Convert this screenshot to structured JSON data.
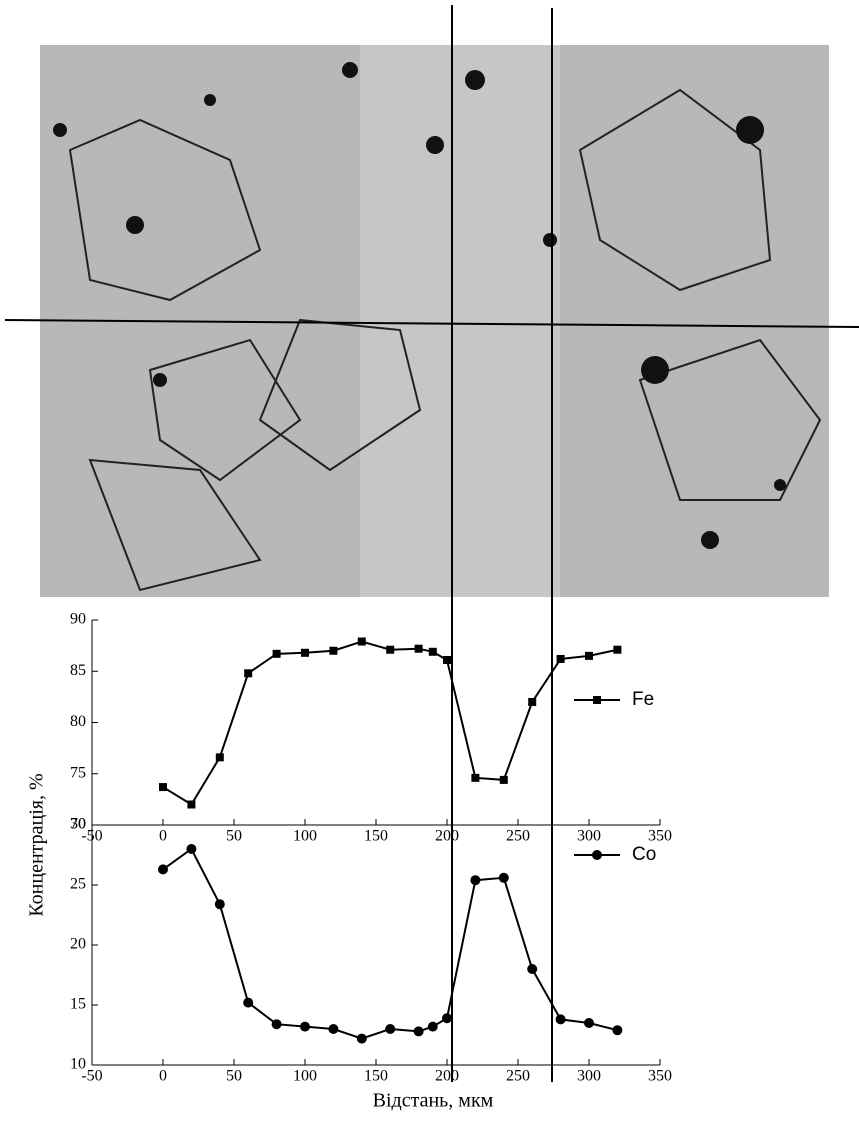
{
  "chart_data": [
    {
      "type": "line",
      "y_label": "Концентрація, %",
      "x": [
        0,
        20,
        40,
        60,
        80,
        100,
        120,
        140,
        160,
        180,
        190,
        200,
        220,
        240,
        260,
        280,
        300,
        320
      ],
      "series": [
        {
          "name": "Fe",
          "color": "#000000",
          "marker": "square",
          "values": [
            73.7,
            72,
            76.6,
            84.8,
            86.7,
            86.8,
            87,
            87.9,
            87.1,
            87.2,
            86.9,
            86.1,
            74.6,
            74.4,
            82,
            86.2,
            86.5,
            87.1
          ]
        }
      ],
      "xlim": [
        -50,
        350
      ],
      "xticks": [
        -50,
        0,
        50,
        100,
        150,
        200,
        250,
        300,
        350
      ],
      "ylim": [
        70,
        90
      ],
      "yticks": [
        70,
        75,
        80,
        85,
        90
      ],
      "legend": "right"
    },
    {
      "type": "line",
      "x_label": "Відстань, мкм",
      "x": [
        0,
        20,
        40,
        60,
        80,
        100,
        120,
        140,
        160,
        180,
        190,
        200,
        220,
        240,
        260,
        280,
        300,
        320
      ],
      "series": [
        {
          "name": "Co",
          "color": "#000000",
          "marker": "circle",
          "values": [
            26.3,
            28,
            23.4,
            15.2,
            13.4,
            13.2,
            13,
            12.2,
            13,
            12.8,
            13.2,
            13.9,
            25.4,
            25.6,
            18,
            13.8,
            13.5,
            12.9
          ]
        }
      ],
      "xlim": [
        -50,
        350
      ],
      "xticks": [
        -50,
        0,
        50,
        100,
        150,
        200,
        250,
        300,
        350
      ],
      "ylim": [
        10,
        30
      ],
      "yticks": [
        10,
        15,
        20,
        25,
        30
      ],
      "legend": "right"
    }
  ]
}
